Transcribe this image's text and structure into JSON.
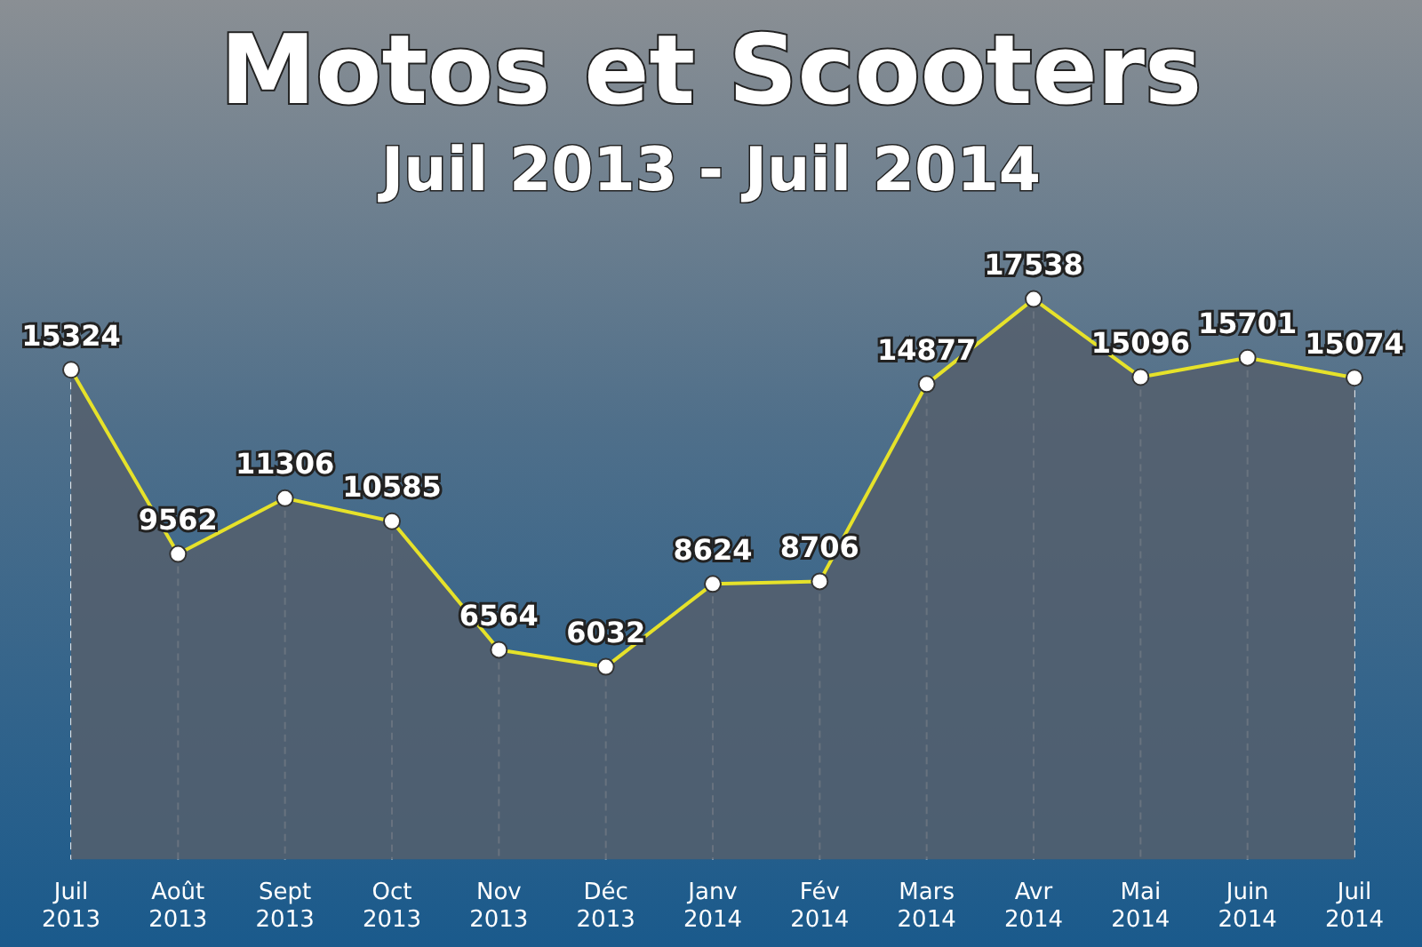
{
  "chart_data": {
    "type": "area",
    "title": "Motos et Scooters",
    "subtitle": "Juil 2013 - Juil 2014",
    "categories": [
      "Juil 2013",
      "Août 2013",
      "Sept 2013",
      "Oct 2013",
      "Nov 2013",
      "Déc 2013",
      "Janv 2014",
      "Fév 2014",
      "Mars 2014",
      "Avr 2014",
      "Mai 2014",
      "Juin 2014",
      "Juil 2014"
    ],
    "series": [
      {
        "color": "#e6e22a",
        "values": [
          15324,
          9562,
          11306,
          10585,
          6564,
          6032,
          8624,
          8706,
          14877,
          17538,
          15096,
          15701,
          15074
        ]
      }
    ],
    "tick_labels": "x",
    "data_labels": true,
    "marker": "circle",
    "grid": "x",
    "legend": false
  }
}
